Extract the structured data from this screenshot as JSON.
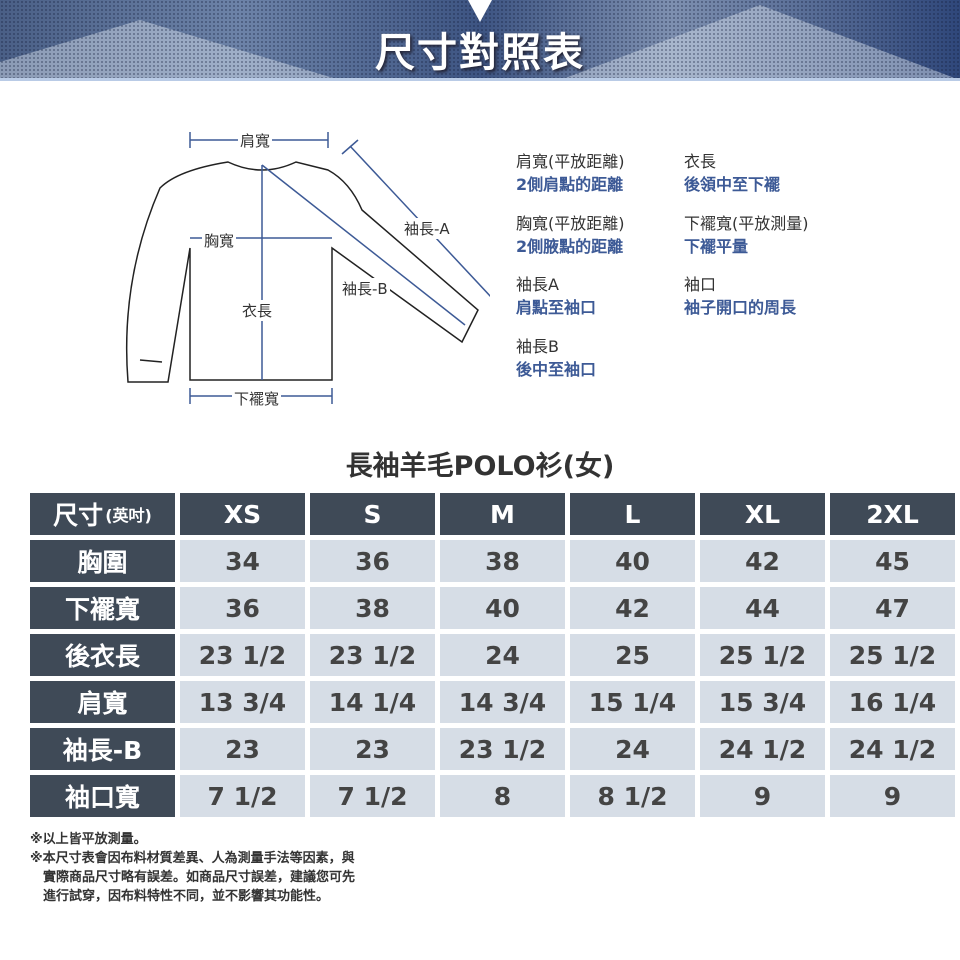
{
  "banner": {
    "title": "尺寸對照表"
  },
  "diagram": {
    "labels": {
      "shoulder": "肩寬",
      "chest": "胸寬",
      "length": "衣長",
      "hem": "下襬寬",
      "sleeve_a": "袖長-A",
      "sleeve_b": "袖長-B"
    }
  },
  "legend": [
    {
      "term": "肩寬(平放距離)",
      "desc": "2側肩點的距離"
    },
    {
      "term": "衣長",
      "desc": "後領中至下襬"
    },
    {
      "term": "胸寬(平放距離)",
      "desc": "2側腋點的距離"
    },
    {
      "term": "下襬寬(平放測量)",
      "desc": "下襬平量"
    },
    {
      "term": "袖長A",
      "desc": "肩點至袖口"
    },
    {
      "term": "袖口",
      "desc": "袖子開口的周長"
    },
    {
      "term": "袖長B",
      "desc": "後中至袖口"
    }
  ],
  "product_title": "長袖羊毛POLO衫(女)",
  "table": {
    "corner": "尺寸",
    "corner_unit": "(英吋)",
    "sizes": [
      "XS",
      "S",
      "M",
      "L",
      "XL",
      "2XL"
    ],
    "rows": [
      {
        "label": "胸圍",
        "values": [
          "34",
          "36",
          "38",
          "40",
          "42",
          "45"
        ]
      },
      {
        "label": "下襬寬",
        "values": [
          "36",
          "38",
          "40",
          "42",
          "44",
          "47"
        ]
      },
      {
        "label": "後衣長",
        "values": [
          "23 1/2",
          "23 1/2",
          "24",
          "25",
          "25 1/2",
          "25 1/2"
        ]
      },
      {
        "label": "肩寬",
        "values": [
          "13 3/4",
          "14 1/4",
          "14 3/4",
          "15 1/4",
          "15 3/4",
          "16 1/4"
        ]
      },
      {
        "label": "袖長-B",
        "values": [
          "23",
          "23",
          "23 1/2",
          "24",
          "24 1/2",
          "24 1/2"
        ]
      },
      {
        "label": "袖口寬",
        "values": [
          "7 1/2",
          "7 1/2",
          "8",
          "8 1/2",
          "9",
          "9"
        ]
      }
    ]
  },
  "notes": [
    "※以上皆平放測量。",
    "※本尺寸表會因布料材質差異、人為測量手法等因素，與",
    "實際商品尺寸略有誤差。如商品尺寸誤差，建議您可先",
    "進行試穿，因布料特性不同，並不影響其功能性。"
  ],
  "colors": {
    "header": "#3f4a57",
    "cell": "#d6dde6",
    "accent": "#3d5a96"
  }
}
